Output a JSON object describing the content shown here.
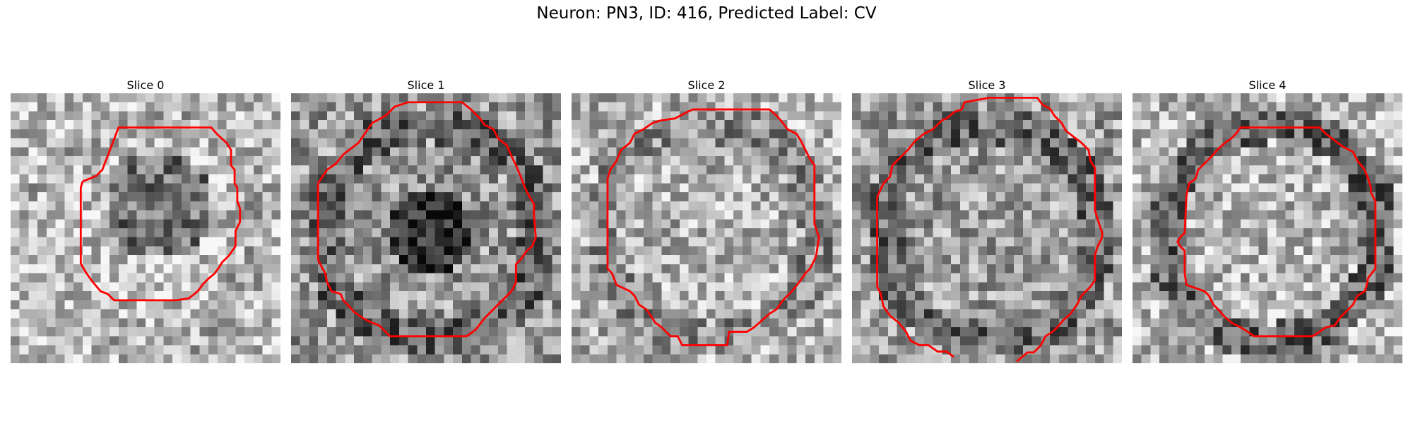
{
  "title": "Neuron: PN3, ID: 416, Predicted Label: CV",
  "contour_color": "#ff0000",
  "slices": [
    {
      "label": "Slice 0",
      "seed": 11,
      "center_dark": 0.55,
      "halo": 0.1,
      "bright": 0.75
    },
    {
      "label": "Slice 1",
      "seed": 23,
      "center_dark": 0.8,
      "halo": 0.35,
      "bright": 0.6
    },
    {
      "label": "Slice 2",
      "seed": 37,
      "center_dark": 0.0,
      "halo": 0.25,
      "bright": 0.7
    },
    {
      "label": "Slice 3",
      "seed": 51,
      "center_dark": 0.0,
      "halo": 0.35,
      "bright": 0.62
    },
    {
      "label": "Slice 4",
      "seed": 67,
      "center_dark": 0.0,
      "halo": 0.55,
      "bright": 0.72
    }
  ]
}
